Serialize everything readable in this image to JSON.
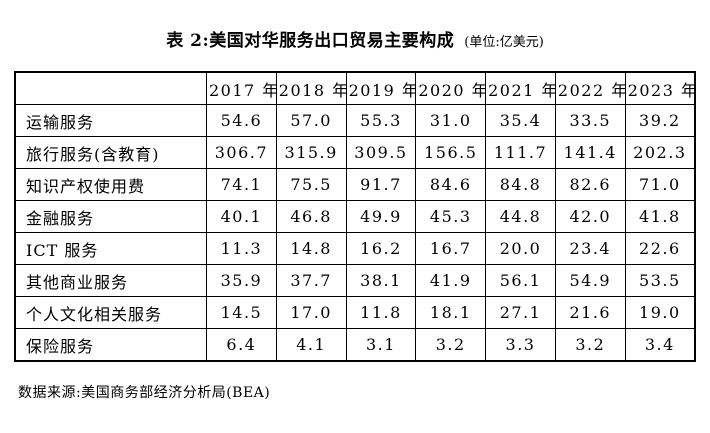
{
  "title": "表 2:美国对华服务出口贸易主要构成",
  "unit": "(单位:亿美元)",
  "source": "数据来源:美国商务部经济分析局(BEA)",
  "table": {
    "col_headers": [
      "2017 年",
      "2018 年",
      "2019 年",
      "2020 年",
      "2021 年",
      "2022 年",
      "2023 年"
    ],
    "rows": [
      {
        "label": "运输服务",
        "values": [
          "54.6",
          "57.0",
          "55.3",
          "31.0",
          "35.4",
          "33.5",
          "39.2"
        ]
      },
      {
        "label": "旅行服务(含教育)",
        "values": [
          "306.7",
          "315.9",
          "309.5",
          "156.5",
          "111.7",
          "141.4",
          "202.3"
        ]
      },
      {
        "label": "知识产权使用费",
        "values": [
          "74.1",
          "75.5",
          "91.7",
          "84.6",
          "84.8",
          "82.6",
          "71.0"
        ]
      },
      {
        "label": "金融服务",
        "values": [
          "40.1",
          "46.8",
          "49.9",
          "45.3",
          "44.8",
          "42.0",
          "41.8"
        ]
      },
      {
        "label": "ICT 服务",
        "values": [
          "11.3",
          "14.8",
          "16.2",
          "16.7",
          "20.0",
          "23.4",
          "22.6"
        ]
      },
      {
        "label": "其他商业服务",
        "values": [
          "35.9",
          "37.7",
          "38.1",
          "41.9",
          "56.1",
          "54.9",
          "53.5"
        ]
      },
      {
        "label": "个人文化相关服务",
        "values": [
          "14.5",
          "17.0",
          "11.8",
          "18.1",
          "27.1",
          "21.6",
          "19.0"
        ]
      },
      {
        "label": "保险服务",
        "values": [
          "6.4",
          "4.1",
          "3.1",
          "3.2",
          "3.3",
          "3.2",
          "3.4"
        ]
      }
    ]
  }
}
